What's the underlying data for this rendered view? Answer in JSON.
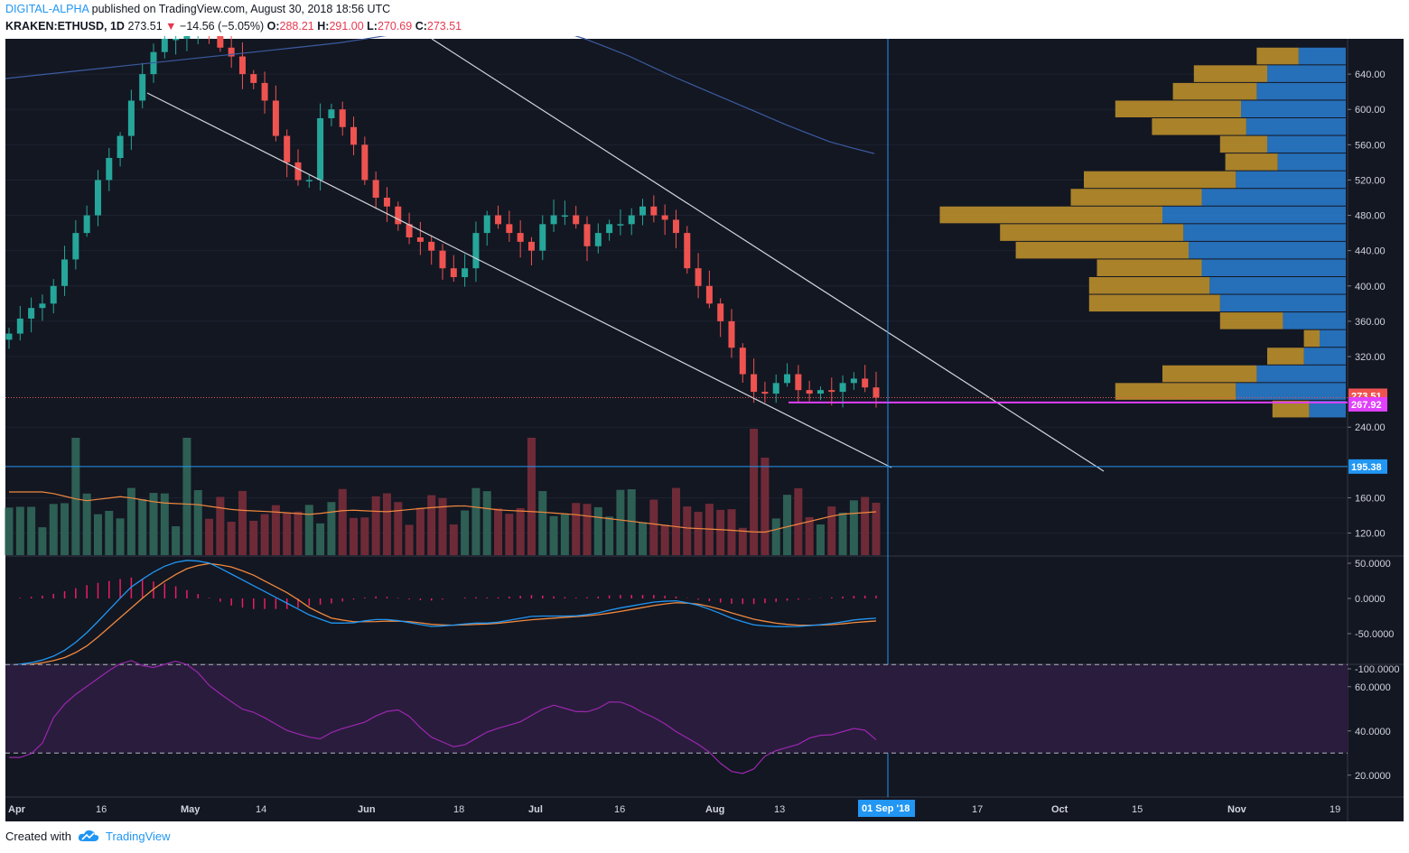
{
  "header": {
    "author": "DIGITAL-ALPHA",
    "published": "published on TradingView.com, August 30, 2018 18:56 UTC",
    "symbol": "KRAKEN:ETHUSD, 1D",
    "last": "273.51",
    "change_arrow": "▼",
    "change": "−14.56 (−5.05%)",
    "open_label": "O:",
    "open": "288.21",
    "high_label": "H:",
    "high": "291.00",
    "low_label": "L:",
    "low": "270.69",
    "close_label": "C:",
    "close": "273.51"
  },
  "footer": {
    "created": "Created with",
    "brand": "TradingView",
    "logo_icon": "tradingview-cloud-icon"
  },
  "colors": {
    "background": "#131722",
    "up": "#26a69a",
    "down": "#ef5350",
    "grid": "#1e2230",
    "axis_text": "#d1d4dc",
    "sma": "#3b5ba0",
    "volume_ma": "#f0883e",
    "macd": "#2196f3",
    "signal": "#f0883e",
    "histogram": "#e91e63",
    "rsi": "#9c27b0",
    "rsi_band": "#2a1c3d",
    "current_price": "#ef5350",
    "support": "#e040fb",
    "horizontal_line": "#2196f3",
    "vp_up": "#2a7fd4",
    "vp_down": "#c4952c"
  },
  "chart_data": {
    "type": "candlestick",
    "symbol": "KRAKEN:ETHUSD",
    "interval": "1D",
    "x_tick_labels": [
      "Apr",
      "16",
      "May",
      "14",
      "Jun",
      "18",
      "Jul",
      "16",
      "Aug",
      "13",
      "01 Sep '18",
      "17",
      "Oct",
      "15",
      "Nov",
      "19"
    ],
    "price_axis": {
      "ylim": [
        95,
        680
      ],
      "ticks": [
        120,
        160,
        240,
        320,
        360,
        400,
        440,
        480,
        520,
        560,
        600,
        640
      ],
      "format": "0.00"
    },
    "markers": {
      "last_price": "273.51",
      "support": "267.92",
      "horizontal": "195.38"
    },
    "candles_close_approx": [
      346,
      363,
      375,
      380,
      400,
      430,
      460,
      480,
      520,
      545,
      570,
      610,
      640,
      665,
      680,
      680,
      690,
      700,
      690,
      670,
      660,
      640,
      630,
      610,
      570,
      540,
      520,
      520,
      590,
      600,
      580,
      560,
      520,
      500,
      490,
      470,
      455,
      450,
      440,
      420,
      410,
      420,
      460,
      480,
      470,
      460,
      450,
      440,
      470,
      480,
      480,
      470,
      445,
      460,
      470,
      470,
      480,
      490,
      480,
      475,
      460,
      420,
      400,
      380,
      360,
      330,
      300,
      280,
      278,
      290,
      300,
      282,
      278,
      282,
      280,
      290,
      295,
      285,
      273.51
    ],
    "sma_approx": [
      635,
      640,
      645,
      650,
      655,
      660,
      665,
      670,
      675,
      682,
      690,
      700,
      700,
      695,
      680,
      662,
      640,
      620,
      600,
      580,
      562,
      550
    ],
    "volume_profile": [
      {
        "price": 660,
        "up": 0.18,
        "down": 0.16
      },
      {
        "price": 640,
        "up": 0.3,
        "down": 0.28
      },
      {
        "price": 620,
        "up": 0.34,
        "down": 0.32
      },
      {
        "price": 600,
        "up": 0.4,
        "down": 0.48
      },
      {
        "price": 580,
        "up": 0.38,
        "down": 0.36
      },
      {
        "price": 560,
        "up": 0.3,
        "down": 0.18
      },
      {
        "price": 540,
        "up": 0.26,
        "down": 0.2
      },
      {
        "price": 520,
        "up": 0.42,
        "down": 0.58
      },
      {
        "price": 500,
        "up": 0.55,
        "down": 0.5
      },
      {
        "price": 480,
        "up": 0.7,
        "down": 0.85
      },
      {
        "price": 460,
        "up": 0.62,
        "down": 0.7
      },
      {
        "price": 440,
        "up": 0.6,
        "down": 0.66
      },
      {
        "price": 420,
        "up": 0.55,
        "down": 0.4
      },
      {
        "price": 400,
        "up": 0.52,
        "down": 0.46
      },
      {
        "price": 380,
        "up": 0.48,
        "down": 0.5
      },
      {
        "price": 360,
        "up": 0.24,
        "down": 0.24
      },
      {
        "price": 340,
        "up": 0.1,
        "down": 0.06
      },
      {
        "price": 320,
        "up": 0.16,
        "down": 0.14
      },
      {
        "price": 300,
        "up": 0.34,
        "down": 0.36
      },
      {
        "price": 280,
        "up": 0.42,
        "down": 0.46
      },
      {
        "price": 260,
        "up": 0.14,
        "down": 0.14
      }
    ],
    "macd": {
      "ylim": [
        -100,
        50
      ],
      "ticks": [
        50,
        0,
        -50,
        -100
      ],
      "tick_labels": [
        "50.0000",
        "0.0000",
        "-50.0000",
        "-100.0000"
      ],
      "macd_approx": [
        -95,
        -92,
        -85,
        -70,
        -45,
        -15,
        15,
        35,
        50,
        55,
        50,
        35,
        20,
        5,
        -10,
        -25,
        -35,
        -35,
        -30,
        -30,
        -35,
        -40,
        -38,
        -35,
        -35,
        -30,
        -25,
        -25,
        -25,
        -22,
        -15,
        -10,
        -5,
        -3,
        -8,
        -18,
        -30,
        -38,
        -40,
        -40,
        -38,
        -35,
        -30,
        -28
      ],
      "signal_approx": [
        -95,
        -94,
        -90,
        -82,
        -65,
        -40,
        -15,
        10,
        30,
        45,
        50,
        45,
        35,
        20,
        5,
        -15,
        -28,
        -33,
        -33,
        -32,
        -33,
        -37,
        -38,
        -37,
        -36,
        -33,
        -30,
        -28,
        -26,
        -24,
        -20,
        -15,
        -10,
        -6,
        -7,
        -13,
        -22,
        -30,
        -35,
        -38,
        -38,
        -37,
        -34,
        -32
      ]
    },
    "rsi": {
      "ylim": [
        15,
        75
      ],
      "ticks": [
        60,
        40,
        20
      ],
      "tick_labels": [
        "60.0000",
        "40.0000",
        "20.0000"
      ],
      "bands": [
        70,
        30
      ],
      "rsi_approx": [
        28,
        28,
        32,
        48,
        55,
        60,
        65,
        70,
        72,
        68,
        70,
        72,
        68,
        60,
        55,
        50,
        48,
        44,
        40,
        38,
        36,
        40,
        42,
        44,
        48,
        50,
        46,
        38,
        35,
        32,
        36,
        40,
        42,
        44,
        48,
        52,
        50,
        48,
        50,
        54,
        52,
        48,
        45,
        40,
        36,
        32,
        25,
        20,
        22,
        30,
        32,
        34,
        38,
        38,
        40,
        42,
        36
      ]
    }
  }
}
